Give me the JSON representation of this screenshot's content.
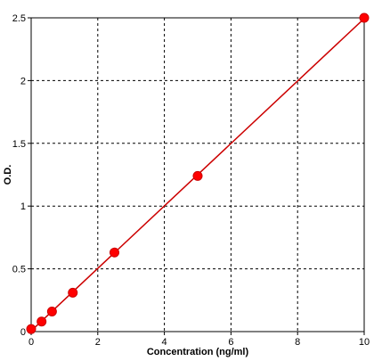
{
  "chart_data": {
    "type": "scatter",
    "title": "",
    "xlabel": "Concentration (ng/ml)",
    "ylabel": "O.D.",
    "xlim": [
      0,
      10
    ],
    "ylim": [
      0,
      2.5
    ],
    "xticks": [
      0,
      2,
      4,
      6,
      8,
      10
    ],
    "xtick_labels": [
      "0",
      "2",
      "4",
      "6",
      "8",
      "10"
    ],
    "yticks": [
      0,
      0.5,
      1,
      1.5,
      2,
      2.5
    ],
    "ytick_labels": [
      "0",
      "0.5",
      "1",
      "1.5",
      "2",
      "2.5"
    ],
    "grid": true,
    "series": [
      {
        "x": [
          0,
          0.313,
          0.625,
          1.25,
          2.5,
          5,
          10
        ],
        "y": [
          0.02,
          0.08,
          0.16,
          0.31,
          0.63,
          1.24,
          2.5
        ],
        "marker_color": "#ff0000",
        "line_color": "#cc0000",
        "fit": "linear"
      }
    ]
  }
}
